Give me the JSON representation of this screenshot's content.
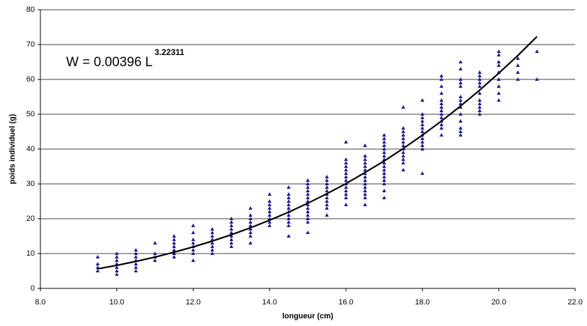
{
  "chart_data": {
    "type": "scatter",
    "xlabel": "longueur (cm)",
    "ylabel": "poids individuel (g)",
    "annotation": {
      "text": "W = 0.00396 L",
      "exponent": "3.22311"
    },
    "xlim": [
      8,
      22
    ],
    "xticks": [
      {
        "value": 8,
        "label": "8.0"
      },
      {
        "value": 10,
        "label": "10.0"
      },
      {
        "value": 12,
        "label": "12.0"
      },
      {
        "value": 14,
        "label": "14.0"
      },
      {
        "value": 16,
        "label": "16.0"
      },
      {
        "value": 18,
        "label": "18.0"
      },
      {
        "value": 20,
        "label": "20.0"
      },
      {
        "value": 22,
        "label": "22.0"
      }
    ],
    "ylim": [
      0,
      80
    ],
    "yticks": [
      0,
      10,
      20,
      30,
      40,
      50,
      60,
      70,
      80
    ],
    "grid": true,
    "series": [
      {
        "type": "scatter",
        "color": "#1c1c8a",
        "x": [
          9.5,
          9.5,
          9.5,
          9.5,
          10,
          10,
          10,
          10,
          10,
          10,
          10,
          10.5,
          10.5,
          10.5,
          10.5,
          10.5,
          10.5,
          10.5,
          11,
          11,
          11,
          11,
          11.5,
          11.5,
          11.5,
          11.5,
          11.5,
          11.5,
          11.5,
          12,
          12,
          12,
          12,
          12,
          12,
          12,
          12,
          12.5,
          12.5,
          12.5,
          12.5,
          12.5,
          12.5,
          12.5,
          12.5,
          13,
          13,
          13,
          13,
          13,
          13,
          13,
          13,
          13,
          13.5,
          13.5,
          13.5,
          13.5,
          13.5,
          13.5,
          13.5,
          13.5,
          13.5,
          14,
          14,
          14,
          14,
          14,
          14,
          14,
          14,
          14,
          14.5,
          14.5,
          14.5,
          14.5,
          14.5,
          14.5,
          14.5,
          14.5,
          14.5,
          14.5,
          14.5,
          14.5,
          15,
          15,
          15,
          15,
          15,
          15,
          15,
          15,
          15,
          15,
          15,
          15,
          15,
          15,
          15.5,
          15.5,
          15.5,
          15.5,
          15.5,
          15.5,
          15.5,
          15.5,
          15.5,
          15.5,
          15.5,
          16,
          16,
          16,
          16,
          16,
          16,
          16,
          16,
          16,
          16,
          16,
          16,
          16,
          16,
          16.5,
          16.5,
          16.5,
          16.5,
          16.5,
          16.5,
          16.5,
          16.5,
          16.5,
          16.5,
          16.5,
          16.5,
          16.5,
          16.5,
          16.5,
          17,
          17,
          17,
          17,
          17,
          17,
          17,
          17,
          17,
          17,
          17,
          17,
          17,
          17,
          17,
          17,
          17,
          17.5,
          17.5,
          17.5,
          17.5,
          17.5,
          17.5,
          17.5,
          17.5,
          17.5,
          17.5,
          17.5,
          17.5,
          17.5,
          18,
          18,
          18,
          18,
          18,
          18,
          18,
          18,
          18,
          18,
          18,
          18,
          18,
          18.5,
          18.5,
          18.5,
          18.5,
          18.5,
          18.5,
          18.5,
          18.5,
          18.5,
          18.5,
          18.5,
          18.5,
          18.5,
          18.5,
          19,
          19,
          19,
          19,
          19,
          19,
          19,
          19,
          19,
          19,
          19,
          19,
          19,
          19,
          19.5,
          19.5,
          19.5,
          19.5,
          19.5,
          19.5,
          19.5,
          19.5,
          19.5,
          19.5,
          19.5,
          20,
          20,
          20,
          20,
          20,
          20,
          20,
          20,
          20,
          20.5,
          20.5,
          20.5,
          20.5,
          21,
          21
        ],
        "values": [
          5,
          6,
          7,
          9,
          4,
          5,
          6,
          7,
          8,
          9,
          10,
          5,
          6,
          7,
          8,
          9,
          10,
          11,
          8,
          9,
          10,
          13,
          9,
          10,
          11,
          12,
          13,
          14,
          15,
          8,
          10,
          11,
          12,
          13,
          14,
          16,
          18,
          10,
          11,
          12,
          13,
          14,
          15,
          16,
          17,
          12,
          13,
          14,
          15,
          16,
          17,
          18,
          19,
          20,
          13,
          15,
          16,
          17,
          18,
          19,
          20,
          21,
          23,
          18,
          19,
          20,
          21,
          22,
          23,
          24,
          25,
          27,
          15,
          18,
          19,
          20,
          21,
          22,
          23,
          24,
          25,
          26,
          27,
          29,
          16,
          19,
          20,
          21,
          22,
          23,
          24,
          25,
          26,
          27,
          28,
          29,
          30,
          31,
          21,
          23,
          24,
          25,
          26,
          27,
          28,
          29,
          30,
          31,
          32,
          24,
          26,
          27,
          28,
          29,
          30,
          31,
          32,
          33,
          34,
          35,
          36,
          37,
          42,
          24,
          26,
          27,
          28,
          29,
          30,
          31,
          32,
          33,
          34,
          35,
          36,
          37,
          38,
          41,
          26,
          28,
          30,
          31,
          32,
          33,
          34,
          35,
          36,
          37,
          38,
          39,
          40,
          41,
          42,
          43,
          44,
          34,
          36,
          37,
          38,
          39,
          40,
          41,
          42,
          43,
          44,
          45,
          46,
          52,
          33,
          40,
          41,
          42,
          43,
          44,
          45,
          46,
          47,
          48,
          49,
          50,
          54,
          44,
          46,
          47,
          48,
          49,
          50,
          51,
          52,
          53,
          54,
          56,
          58,
          60,
          61,
          44,
          45,
          46,
          48,
          50,
          52,
          53,
          54,
          55,
          58,
          59,
          60,
          63,
          65,
          50,
          51,
          52,
          53,
          54,
          56,
          58,
          59,
          60,
          61,
          62,
          54,
          56,
          58,
          60,
          62,
          64,
          65,
          67,
          68,
          60,
          62,
          64,
          66,
          60,
          68
        ]
      },
      {
        "type": "line",
        "color": "#000000",
        "x": [
          9.5,
          10,
          10.5,
          11,
          11.5,
          12,
          12.5,
          13,
          13.5,
          14,
          14.5,
          15,
          15.5,
          16,
          16.5,
          17,
          17.5,
          18,
          18.5,
          19,
          19.5,
          20,
          20.5,
          21
        ],
        "values": [
          5.61,
          6.62,
          7.75,
          8.99,
          10.39,
          11.91,
          13.58,
          15.41,
          17.4,
          19.57,
          21.91,
          24.44,
          27.19,
          30.08,
          33.28,
          36.58,
          40.17,
          43.99,
          48.05,
          52.36,
          56.93,
          61.78,
          66.86,
          72.3
        ]
      }
    ]
  }
}
